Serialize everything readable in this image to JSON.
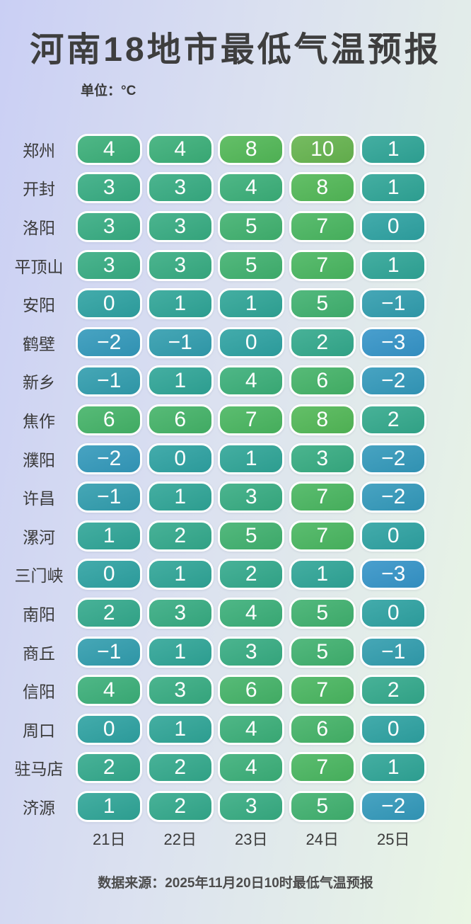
{
  "title": "河南18地市最低气温预报",
  "unit_label": "单位：°C",
  "footer": "数据来源：2025年11月20日10时最低气温预报",
  "chart_data": {
    "type": "heatmap",
    "title": "河南18地市最低气温预报",
    "unit": "°C",
    "columns": [
      "21日",
      "22日",
      "23日",
      "24日",
      "25日"
    ],
    "rows": [
      {
        "city": "郑州",
        "temps": [
          4,
          4,
          8,
          10,
          1
        ]
      },
      {
        "city": "开封",
        "temps": [
          3,
          3,
          4,
          8,
          1
        ]
      },
      {
        "city": "洛阳",
        "temps": [
          3,
          3,
          5,
          7,
          0
        ]
      },
      {
        "city": "平顶山",
        "temps": [
          3,
          3,
          5,
          7,
          1
        ]
      },
      {
        "city": "安阳",
        "temps": [
          0,
          1,
          1,
          5,
          -1
        ]
      },
      {
        "city": "鹤壁",
        "temps": [
          -2,
          -1,
          0,
          2,
          -3
        ]
      },
      {
        "city": "新乡",
        "temps": [
          -1,
          1,
          4,
          6,
          -2
        ]
      },
      {
        "city": "焦作",
        "temps": [
          6,
          6,
          7,
          8,
          2
        ]
      },
      {
        "city": "濮阳",
        "temps": [
          -2,
          0,
          1,
          3,
          -2
        ]
      },
      {
        "city": "许昌",
        "temps": [
          -1,
          1,
          3,
          7,
          -2
        ]
      },
      {
        "city": "漯河",
        "temps": [
          1,
          2,
          5,
          7,
          0
        ]
      },
      {
        "city": "三门峡",
        "temps": [
          0,
          1,
          2,
          1,
          -3
        ]
      },
      {
        "city": "南阳",
        "temps": [
          2,
          3,
          4,
          5,
          0
        ]
      },
      {
        "city": "商丘",
        "temps": [
          -1,
          1,
          3,
          5,
          -1
        ]
      },
      {
        "city": "信阳",
        "temps": [
          4,
          3,
          6,
          7,
          2
        ]
      },
      {
        "city": "周口",
        "temps": [
          0,
          1,
          4,
          6,
          0
        ]
      },
      {
        "city": "驻马店",
        "temps": [
          2,
          2,
          4,
          7,
          1
        ]
      },
      {
        "city": "济源",
        "temps": [
          1,
          2,
          3,
          5,
          -2
        ]
      }
    ],
    "color_scale": {
      "-3": "#3594c8",
      "-2": "#3399bb",
      "-1": "#319dae",
      "0": "#2ea2a2",
      "1": "#2fa597",
      "2": "#33a98c",
      "3": "#37ac82",
      "4": "#3baf79",
      "5": "#40b16f",
      "6": "#44b368",
      "7": "#49b660",
      "8": "#52b857",
      "10": "#66b44f"
    }
  },
  "colors": {
    "background_left": "#cacff4",
    "background_mid": "#dbe1f0",
    "background_right": "#e9f6e4",
    "pill_border": "#ffffff",
    "pill_text": "#ffffff",
    "title_text": "#3e3e3e",
    "label_text": "#3a3a3a",
    "footer_text": "#4c4c4c"
  }
}
